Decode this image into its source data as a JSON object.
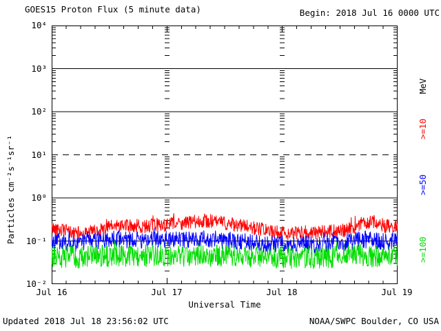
{
  "chart_data": {
    "type": "line",
    "title": "GOES15 Proton Flux (5 minute data)",
    "begin_label": "Begin: 2018 Jul 16 0000 UTC",
    "xlabel": "Universal Time",
    "ylabel": "Particles cm⁻²s⁻¹sr⁻¹",
    "legend_title": "MeV",
    "x_tick_labels": [
      "Jul 16",
      "Jul 17",
      "Jul 18",
      "Jul 19"
    ],
    "y_tick_labels": [
      "10⁴",
      "10³",
      "10²",
      "10¹",
      "10⁰",
      "10⁻¹",
      "10⁻²"
    ],
    "x_range_hours": [
      0,
      72
    ],
    "y_log10_range": [
      -2,
      4
    ],
    "grid": {
      "solid_hlines_at_flux": [
        1000,
        100,
        1,
        0.1
      ],
      "dashed_hlines_at_flux": [
        10
      ],
      "day_boundary_gridline_hours": [
        24,
        48
      ],
      "time_minor_tick_hours": 3,
      "log_minor_ticks": [
        2,
        3,
        4,
        5,
        6,
        7,
        8,
        9
      ]
    },
    "series": [
      {
        "name": ">=10",
        "color": "#ff0000",
        "noise_log10": 0.16,
        "spike_prob": 0.05,
        "spike_log10": 0.14,
        "hourly_values": [
          0.2,
          0.19,
          0.18,
          0.17,
          0.16,
          0.15,
          0.15,
          0.15,
          0.16,
          0.17,
          0.18,
          0.19,
          0.21,
          0.22,
          0.23,
          0.22,
          0.22,
          0.23,
          0.22,
          0.22,
          0.23,
          0.23,
          0.24,
          0.24,
          0.24,
          0.25,
          0.25,
          0.26,
          0.26,
          0.27,
          0.28,
          0.3,
          0.3,
          0.29,
          0.28,
          0.27,
          0.26,
          0.25,
          0.24,
          0.23,
          0.22,
          0.21,
          0.2,
          0.19,
          0.18,
          0.17,
          0.17,
          0.16,
          0.16,
          0.15,
          0.15,
          0.15,
          0.16,
          0.16,
          0.15,
          0.15,
          0.16,
          0.16,
          0.17,
          0.17,
          0.18,
          0.18,
          0.19,
          0.21,
          0.24,
          0.26,
          0.27,
          0.26,
          0.24,
          0.22,
          0.22,
          0.22
        ]
      },
      {
        "name": ">=50",
        "color": "#0000ff",
        "noise_log10": 0.2,
        "spike_prob": 0.04,
        "spike_log10": 0.16,
        "hourly_values": [
          0.1,
          0.1,
          0.095,
          0.09,
          0.09,
          0.09,
          0.09,
          0.095,
          0.095,
          0.1,
          0.1,
          0.1,
          0.105,
          0.11,
          0.11,
          0.105,
          0.105,
          0.11,
          0.105,
          0.1,
          0.105,
          0.105,
          0.11,
          0.11,
          0.11,
          0.11,
          0.11,
          0.11,
          0.105,
          0.105,
          0.11,
          0.11,
          0.11,
          0.105,
          0.1,
          0.1,
          0.1,
          0.1,
          0.1,
          0.095,
          0.095,
          0.09,
          0.09,
          0.09,
          0.085,
          0.085,
          0.085,
          0.085,
          0.085,
          0.08,
          0.08,
          0.085,
          0.085,
          0.085,
          0.08,
          0.08,
          0.085,
          0.085,
          0.09,
          0.09,
          0.09,
          0.09,
          0.095,
          0.1,
          0.105,
          0.105,
          0.105,
          0.1,
          0.1,
          0.095,
          0.095,
          0.1
        ]
      },
      {
        "name": ">=100",
        "color": "#00dd00",
        "noise_log10": 0.26,
        "spike_prob": 0.04,
        "spike_log10": 0.16,
        "hourly_values": [
          0.045,
          0.044,
          0.043,
          0.042,
          0.042,
          0.042,
          0.042,
          0.043,
          0.043,
          0.044,
          0.044,
          0.045,
          0.046,
          0.047,
          0.047,
          0.046,
          0.046,
          0.047,
          0.046,
          0.045,
          0.046,
          0.046,
          0.047,
          0.047,
          0.047,
          0.047,
          0.047,
          0.047,
          0.046,
          0.046,
          0.047,
          0.047,
          0.047,
          0.046,
          0.045,
          0.045,
          0.045,
          0.045,
          0.045,
          0.044,
          0.044,
          0.043,
          0.043,
          0.043,
          0.042,
          0.042,
          0.042,
          0.042,
          0.042,
          0.041,
          0.041,
          0.042,
          0.042,
          0.042,
          0.041,
          0.041,
          0.042,
          0.042,
          0.043,
          0.043,
          0.043,
          0.043,
          0.044,
          0.045,
          0.046,
          0.046,
          0.046,
          0.045,
          0.045,
          0.044,
          0.044,
          0.045
        ]
      }
    ]
  },
  "footer": {
    "updated": "Updated 2018 Jul 18 23:56:02 UTC",
    "source": "NOAA/SWPC Boulder, CO USA"
  }
}
